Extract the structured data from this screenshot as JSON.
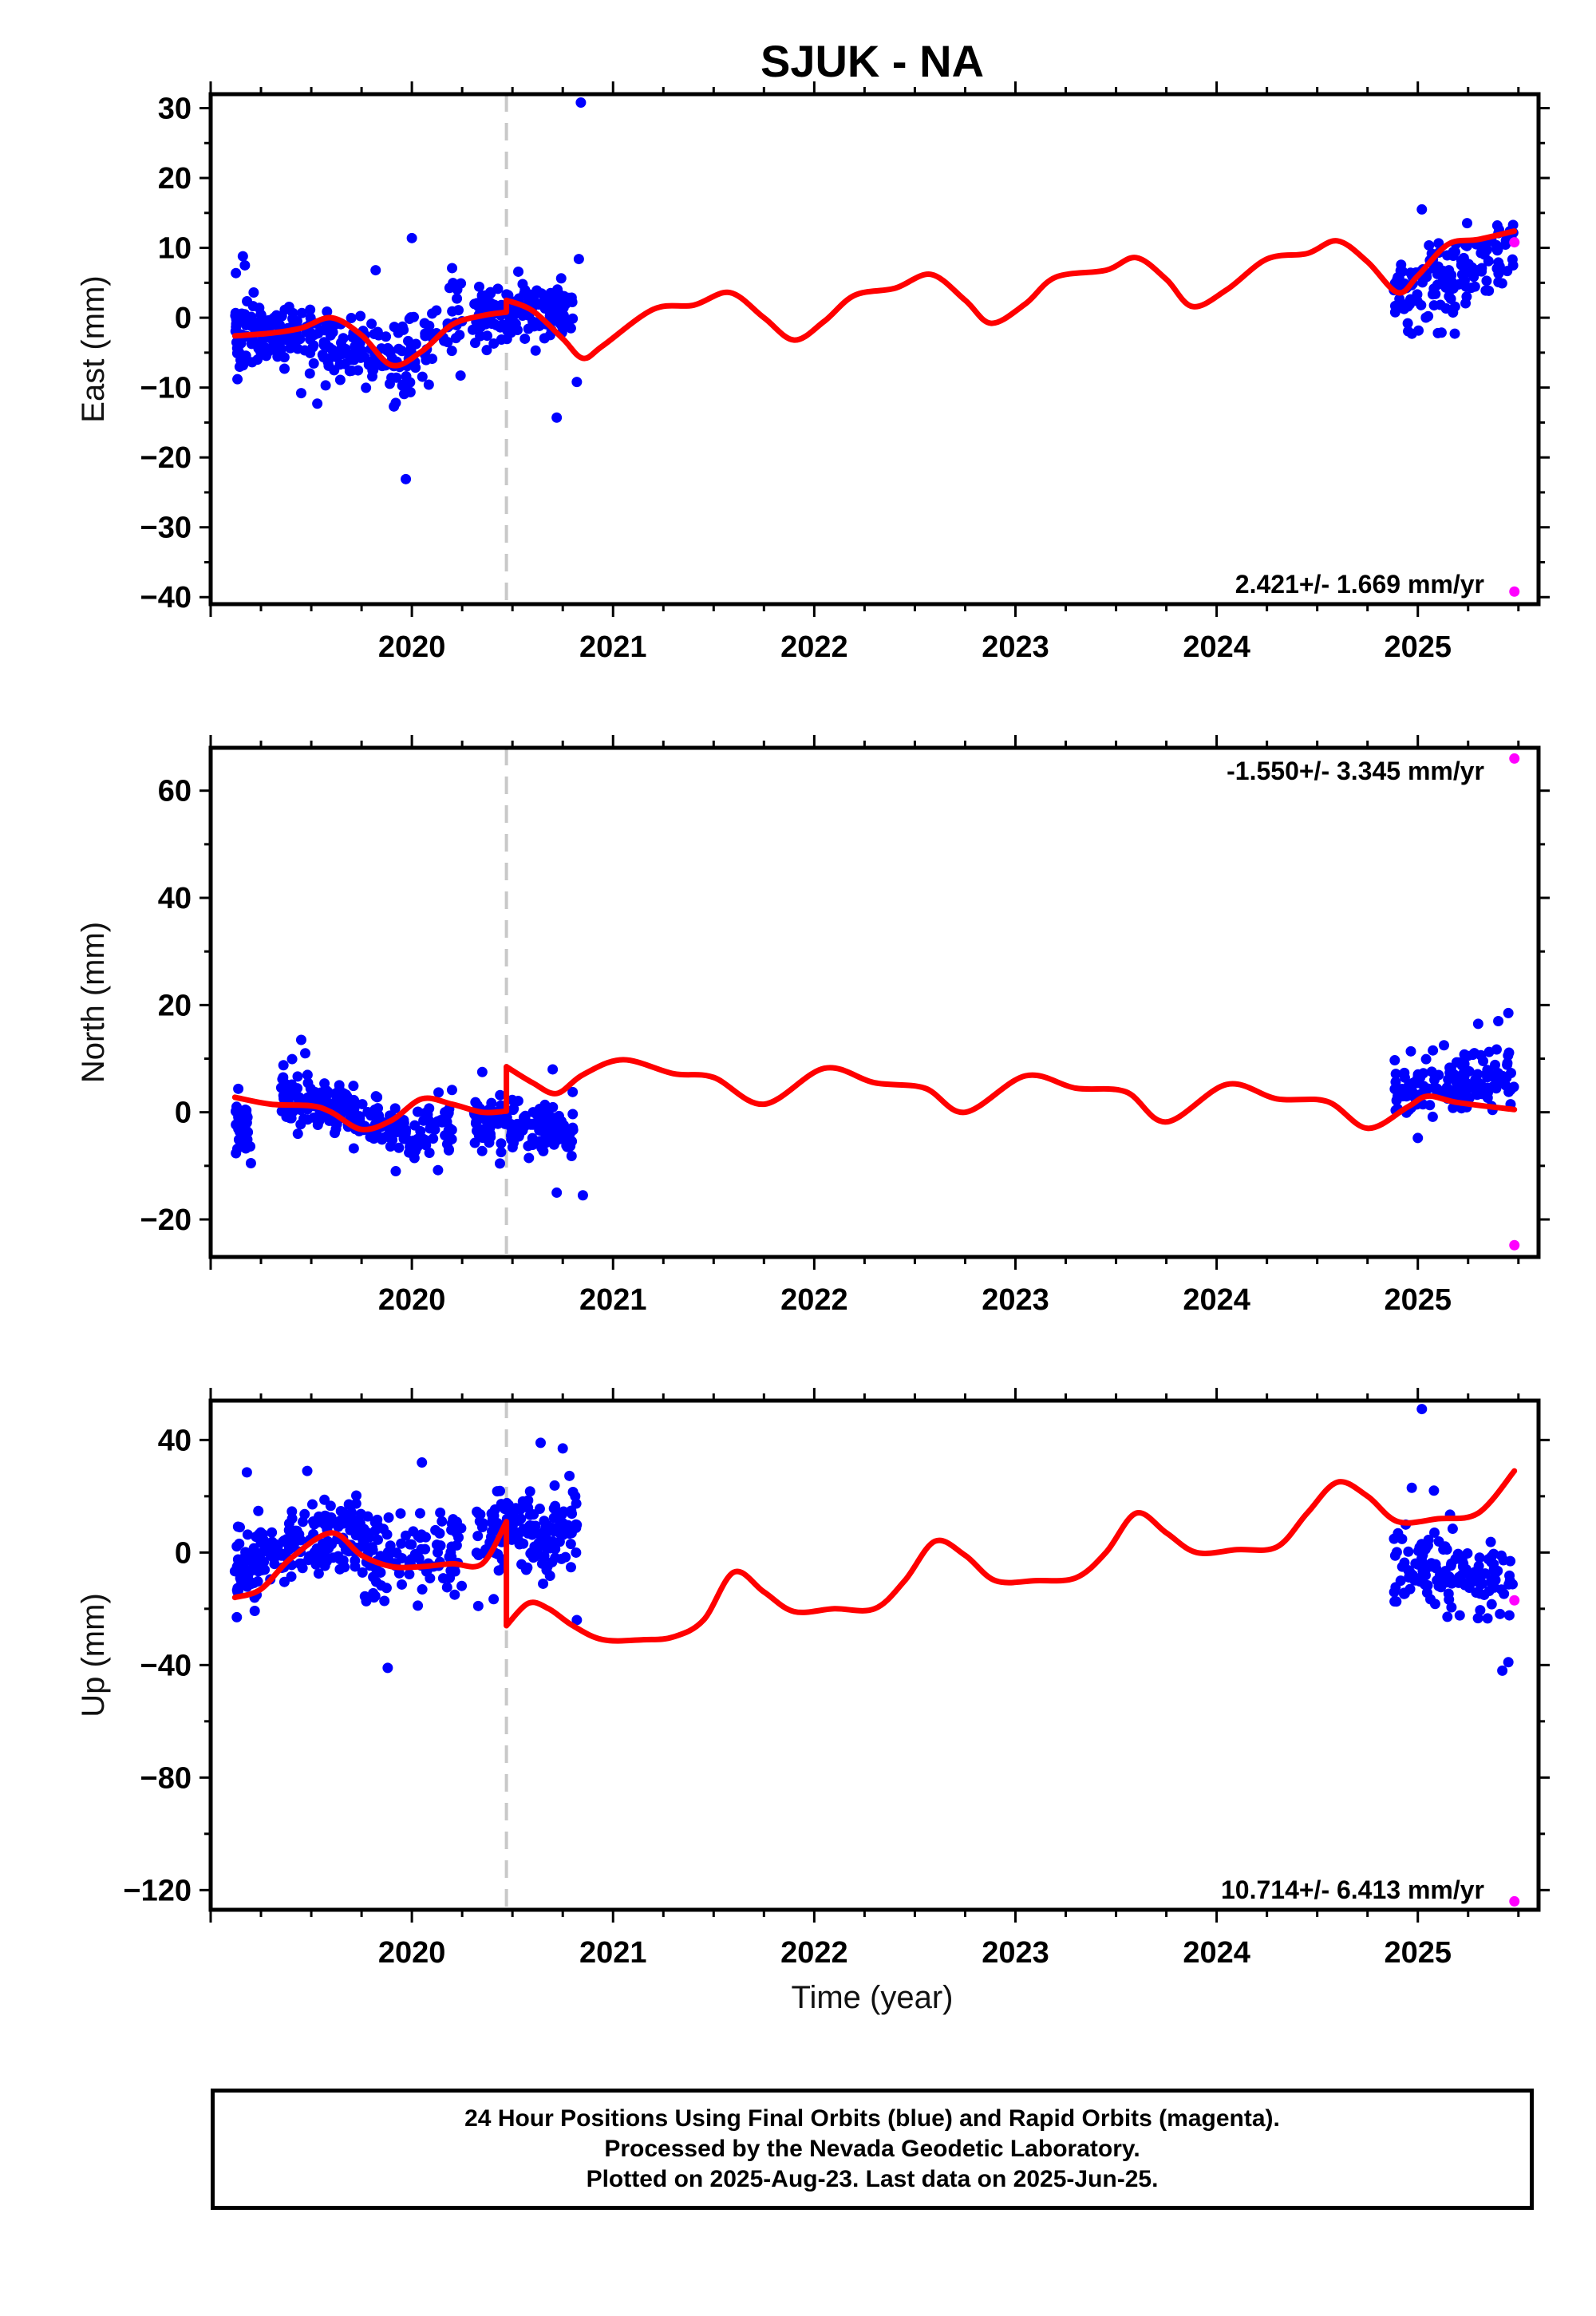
{
  "title": "SJUK - NA",
  "xlabel": "Time (year)",
  "colors": {
    "final": "#0000ff",
    "rapid": "#ff00ff",
    "model": "#ff0000",
    "break": "#c8c8c8"
  },
  "footer": {
    "line1": "24 Hour Positions Using Final Orbits (blue) and Rapid Orbits (magenta).",
    "line2": "Processed by the Nevada Geodetic Laboratory.",
    "line3": "Plotted on 2025-Aug-23. Last data on 2025-Jun-25."
  },
  "chart_data": [
    {
      "type": "scatter",
      "component": "east",
      "ylabel": "East (mm)",
      "rate": "2.421+/- 1.669 mm/yr",
      "xlim": [
        2019.0,
        2025.6
      ],
      "ylim": [
        -41,
        32
      ],
      "yticks": [
        -40,
        -30,
        -20,
        -10,
        0,
        10,
        20,
        30
      ],
      "xticks": [
        2020,
        2021,
        2022,
        2023,
        2024,
        2025
      ],
      "break_line": 2020.47,
      "grid": false,
      "model_line": [
        [
          2019.12,
          -2.6
        ],
        [
          2019.3,
          -2.2
        ],
        [
          2019.45,
          -1.5
        ],
        [
          2019.6,
          0.0
        ],
        [
          2019.75,
          -2.5
        ],
        [
          2019.9,
          -6.8
        ],
        [
          2020.05,
          -4.8
        ],
        [
          2020.2,
          -1.0
        ],
        [
          2020.35,
          0.3
        ],
        [
          2020.47,
          0.8
        ],
        [
          2020.47,
          2.5
        ],
        [
          2020.6,
          1.0
        ],
        [
          2020.75,
          -3.0
        ],
        [
          2020.85,
          -5.8
        ],
        [
          2020.95,
          -4.0
        ],
        [
          2021.2,
          1.2
        ],
        [
          2021.4,
          1.8
        ],
        [
          2021.58,
          3.6
        ],
        [
          2021.75,
          0.0
        ],
        [
          2021.9,
          -3.2
        ],
        [
          2022.05,
          -0.5
        ],
        [
          2022.2,
          3.2
        ],
        [
          2022.4,
          4.2
        ],
        [
          2022.58,
          6.2
        ],
        [
          2022.75,
          2.5
        ],
        [
          2022.88,
          -0.8
        ],
        [
          2023.05,
          2.0
        ],
        [
          2023.2,
          5.8
        ],
        [
          2023.45,
          6.8
        ],
        [
          2023.6,
          8.6
        ],
        [
          2023.75,
          5.5
        ],
        [
          2023.88,
          1.6
        ],
        [
          2024.05,
          4.0
        ],
        [
          2024.25,
          8.4
        ],
        [
          2024.45,
          9.2
        ],
        [
          2024.6,
          11.0
        ],
        [
          2024.75,
          8.0
        ],
        [
          2024.9,
          3.6
        ],
        [
          2025.0,
          6.0
        ],
        [
          2025.15,
          10.5
        ],
        [
          2025.3,
          11.2
        ],
        [
          2025.48,
          12.4
        ]
      ],
      "final_clusters": [
        {
          "x": [
            2019.12,
            2019.2
          ],
          "center": [
            -2.5,
            -2.5
          ],
          "spread": 2.5,
          "n": 45,
          "seed": 11
        },
        {
          "x": [
            2019.2,
            2019.9
          ],
          "center": [
            -1.0,
            -6.5
          ],
          "spread": 2.5,
          "n": 180,
          "seed": 12
        },
        {
          "x": [
            2019.9,
            2020.25
          ],
          "center": [
            -6.5,
            -1.0
          ],
          "spread": 3.0,
          "n": 70,
          "seed": 13
        },
        {
          "x": [
            2020.3,
            2020.8
          ],
          "center": [
            0.5,
            1.5
          ],
          "spread": 2.0,
          "n": 150,
          "seed": 14
        },
        {
          "x": [
            2024.88,
            2025.48
          ],
          "center": [
            3.0,
            10.0
          ],
          "spread": 2.8,
          "n": 150,
          "seed": 15
        }
      ],
      "final_outliers": [
        [
          2019.16,
          8.8
        ],
        [
          2019.17,
          7.5
        ],
        [
          2019.45,
          -10.8
        ],
        [
          2019.53,
          -12.3
        ],
        [
          2019.82,
          6.8
        ],
        [
          2019.92,
          -12.2
        ],
        [
          2019.97,
          -23.1
        ],
        [
          2020.0,
          11.4
        ],
        [
          2020.2,
          7.1
        ],
        [
          2020.72,
          -14.3
        ],
        [
          2020.82,
          -9.2
        ],
        [
          2020.84,
          30.8
        ],
        [
          2020.83,
          8.4
        ],
        [
          2025.02,
          15.5
        ],
        [
          2025.1,
          -2.2
        ],
        [
          2024.95,
          -0.8
        ]
      ],
      "rapid_points": [
        [
          2025.48,
          10.8
        ],
        [
          2025.48,
          -39.2
        ]
      ]
    },
    {
      "type": "scatter",
      "component": "north",
      "ylabel": "North (mm)",
      "rate": "-1.550+/- 3.345 mm/yr",
      "xlim": [
        2019.0,
        2025.6
      ],
      "ylim": [
        -27,
        68
      ],
      "yticks": [
        -20,
        0,
        20,
        40,
        60
      ],
      "xticks": [
        2020,
        2021,
        2022,
        2023,
        2024,
        2025
      ],
      "break_line": 2020.47,
      "grid": false,
      "model_line": [
        [
          2019.12,
          2.8
        ],
        [
          2019.3,
          1.5
        ],
        [
          2019.5,
          1.2
        ],
        [
          2019.6,
          0.0
        ],
        [
          2019.75,
          -3.2
        ],
        [
          2019.9,
          -1.5
        ],
        [
          2020.05,
          2.5
        ],
        [
          2020.2,
          1.5
        ],
        [
          2020.35,
          0.0
        ],
        [
          2020.47,
          0.2
        ],
        [
          2020.47,
          8.5
        ],
        [
          2020.6,
          5.5
        ],
        [
          2020.72,
          3.5
        ],
        [
          2020.85,
          7.0
        ],
        [
          2021.05,
          9.8
        ],
        [
          2021.3,
          7.2
        ],
        [
          2021.5,
          6.5
        ],
        [
          2021.75,
          1.5
        ],
        [
          2022.05,
          8.2
        ],
        [
          2022.3,
          5.5
        ],
        [
          2022.55,
          4.5
        ],
        [
          2022.75,
          0.0
        ],
        [
          2023.05,
          6.8
        ],
        [
          2023.3,
          4.5
        ],
        [
          2023.55,
          3.8
        ],
        [
          2023.75,
          -1.8
        ],
        [
          2024.05,
          5.2
        ],
        [
          2024.3,
          2.5
        ],
        [
          2024.55,
          2.0
        ],
        [
          2024.75,
          -3.0
        ],
        [
          2024.95,
          1.0
        ],
        [
          2025.05,
          3.0
        ],
        [
          2025.2,
          1.8
        ],
        [
          2025.48,
          0.5
        ]
      ],
      "final_clusters": [
        {
          "x": [
            2019.12,
            2019.2
          ],
          "center": [
            -2.5,
            -4.0
          ],
          "spread": 2.5,
          "n": 45,
          "seed": 21
        },
        {
          "x": [
            2019.35,
            2019.95
          ],
          "center": [
            3.5,
            -3.5
          ],
          "spread": 2.2,
          "n": 180,
          "seed": 22
        },
        {
          "x": [
            2019.95,
            2020.2
          ],
          "center": [
            -3.5,
            -1.5
          ],
          "spread": 2.5,
          "n": 60,
          "seed": 23
        },
        {
          "x": [
            2020.3,
            2020.82
          ],
          "center": [
            -1.5,
            -4.0
          ],
          "spread": 2.5,
          "n": 150,
          "seed": 24
        },
        {
          "x": [
            2024.88,
            2025.48
          ],
          "center": [
            4.0,
            7.0
          ],
          "spread": 2.5,
          "n": 150,
          "seed": 25
        }
      ],
      "final_outliers": [
        [
          2019.2,
          -9.5
        ],
        [
          2019.45,
          13.5
        ],
        [
          2019.47,
          11.0
        ],
        [
          2019.92,
          -11.0
        ],
        [
          2020.13,
          -10.8
        ],
        [
          2020.35,
          7.5
        ],
        [
          2020.72,
          -15.0
        ],
        [
          2020.85,
          -15.5
        ],
        [
          2020.7,
          8.0
        ],
        [
          2025.0,
          -4.8
        ],
        [
          2025.3,
          16.5
        ],
        [
          2025.45,
          18.5
        ],
        [
          2025.4,
          17.0
        ],
        [
          2025.13,
          12.5
        ]
      ],
      "rapid_points": [
        [
          2025.48,
          66.0
        ],
        [
          2025.48,
          -24.8
        ]
      ]
    },
    {
      "type": "scatter",
      "component": "up",
      "ylabel": "Up (mm)",
      "rate": "10.714+/- 6.413 mm/yr",
      "xlim": [
        2019.0,
        2025.6
      ],
      "ylim": [
        -127,
        54
      ],
      "yticks": [
        -120,
        -80,
        -40,
        0,
        40
      ],
      "xticks": [
        2020,
        2021,
        2022,
        2023,
        2024,
        2025
      ],
      "break_line": 2020.47,
      "grid": false,
      "model_line": [
        [
          2019.12,
          -16
        ],
        [
          2019.25,
          -13
        ],
        [
          2019.4,
          -2
        ],
        [
          2019.6,
          7
        ],
        [
          2019.75,
          -1
        ],
        [
          2019.9,
          -5
        ],
        [
          2020.05,
          -5
        ],
        [
          2020.2,
          -4
        ],
        [
          2020.35,
          -4
        ],
        [
          2020.47,
          11
        ],
        [
          2020.47,
          -26
        ],
        [
          2020.58,
          -18
        ],
        [
          2020.68,
          -20
        ],
        [
          2020.8,
          -26
        ],
        [
          2020.95,
          -31
        ],
        [
          2021.15,
          -31
        ],
        [
          2021.3,
          -30
        ],
        [
          2021.45,
          -24
        ],
        [
          2021.6,
          -7
        ],
        [
          2021.75,
          -14
        ],
        [
          2021.9,
          -21
        ],
        [
          2022.1,
          -20
        ],
        [
          2022.3,
          -20
        ],
        [
          2022.45,
          -10
        ],
        [
          2022.6,
          4
        ],
        [
          2022.75,
          -1
        ],
        [
          2022.9,
          -10
        ],
        [
          2023.1,
          -10
        ],
        [
          2023.3,
          -9
        ],
        [
          2023.45,
          0
        ],
        [
          2023.6,
          14
        ],
        [
          2023.75,
          7
        ],
        [
          2023.9,
          0
        ],
        [
          2024.1,
          1
        ],
        [
          2024.3,
          2
        ],
        [
          2024.45,
          14
        ],
        [
          2024.6,
          25
        ],
        [
          2024.75,
          20
        ],
        [
          2024.9,
          11
        ],
        [
          2025.1,
          12
        ],
        [
          2025.3,
          14
        ],
        [
          2025.48,
          29
        ]
      ],
      "final_clusters": [
        {
          "x": [
            2019.12,
            2019.22
          ],
          "center": [
            -5.0,
            -8.0
          ],
          "spread": 7.0,
          "n": 45,
          "seed": 31
        },
        {
          "x": [
            2019.22,
            2019.75
          ],
          "center": [
            -2.0,
            8.0
          ],
          "spread": 7.0,
          "n": 160,
          "seed": 32
        },
        {
          "x": [
            2019.75,
            2020.25
          ],
          "center": [
            -2.0,
            0.0
          ],
          "spread": 8.0,
          "n": 110,
          "seed": 33
        },
        {
          "x": [
            2020.32,
            2020.82
          ],
          "center": [
            8.0,
            8.0
          ],
          "spread": 8.0,
          "n": 150,
          "seed": 34
        },
        {
          "x": [
            2024.88,
            2025.48
          ],
          "center": [
            -5.0,
            -12.0
          ],
          "spread": 8.0,
          "n": 140,
          "seed": 35
        }
      ],
      "final_outliers": [
        [
          2019.13,
          -23
        ],
        [
          2019.18,
          28.5
        ],
        [
          2019.48,
          29
        ],
        [
          2019.88,
          -41
        ],
        [
          2020.05,
          32
        ],
        [
          2020.33,
          -19
        ],
        [
          2020.64,
          39
        ],
        [
          2020.75,
          37
        ],
        [
          2020.82,
          -24
        ],
        [
          2025.02,
          51
        ],
        [
          2025.08,
          22
        ],
        [
          2025.42,
          -42
        ],
        [
          2025.45,
          -39
        ],
        [
          2024.97,
          23
        ]
      ],
      "rapid_points": [
        [
          2025.48,
          -17.0
        ],
        [
          2025.48,
          -124.0
        ]
      ]
    }
  ]
}
